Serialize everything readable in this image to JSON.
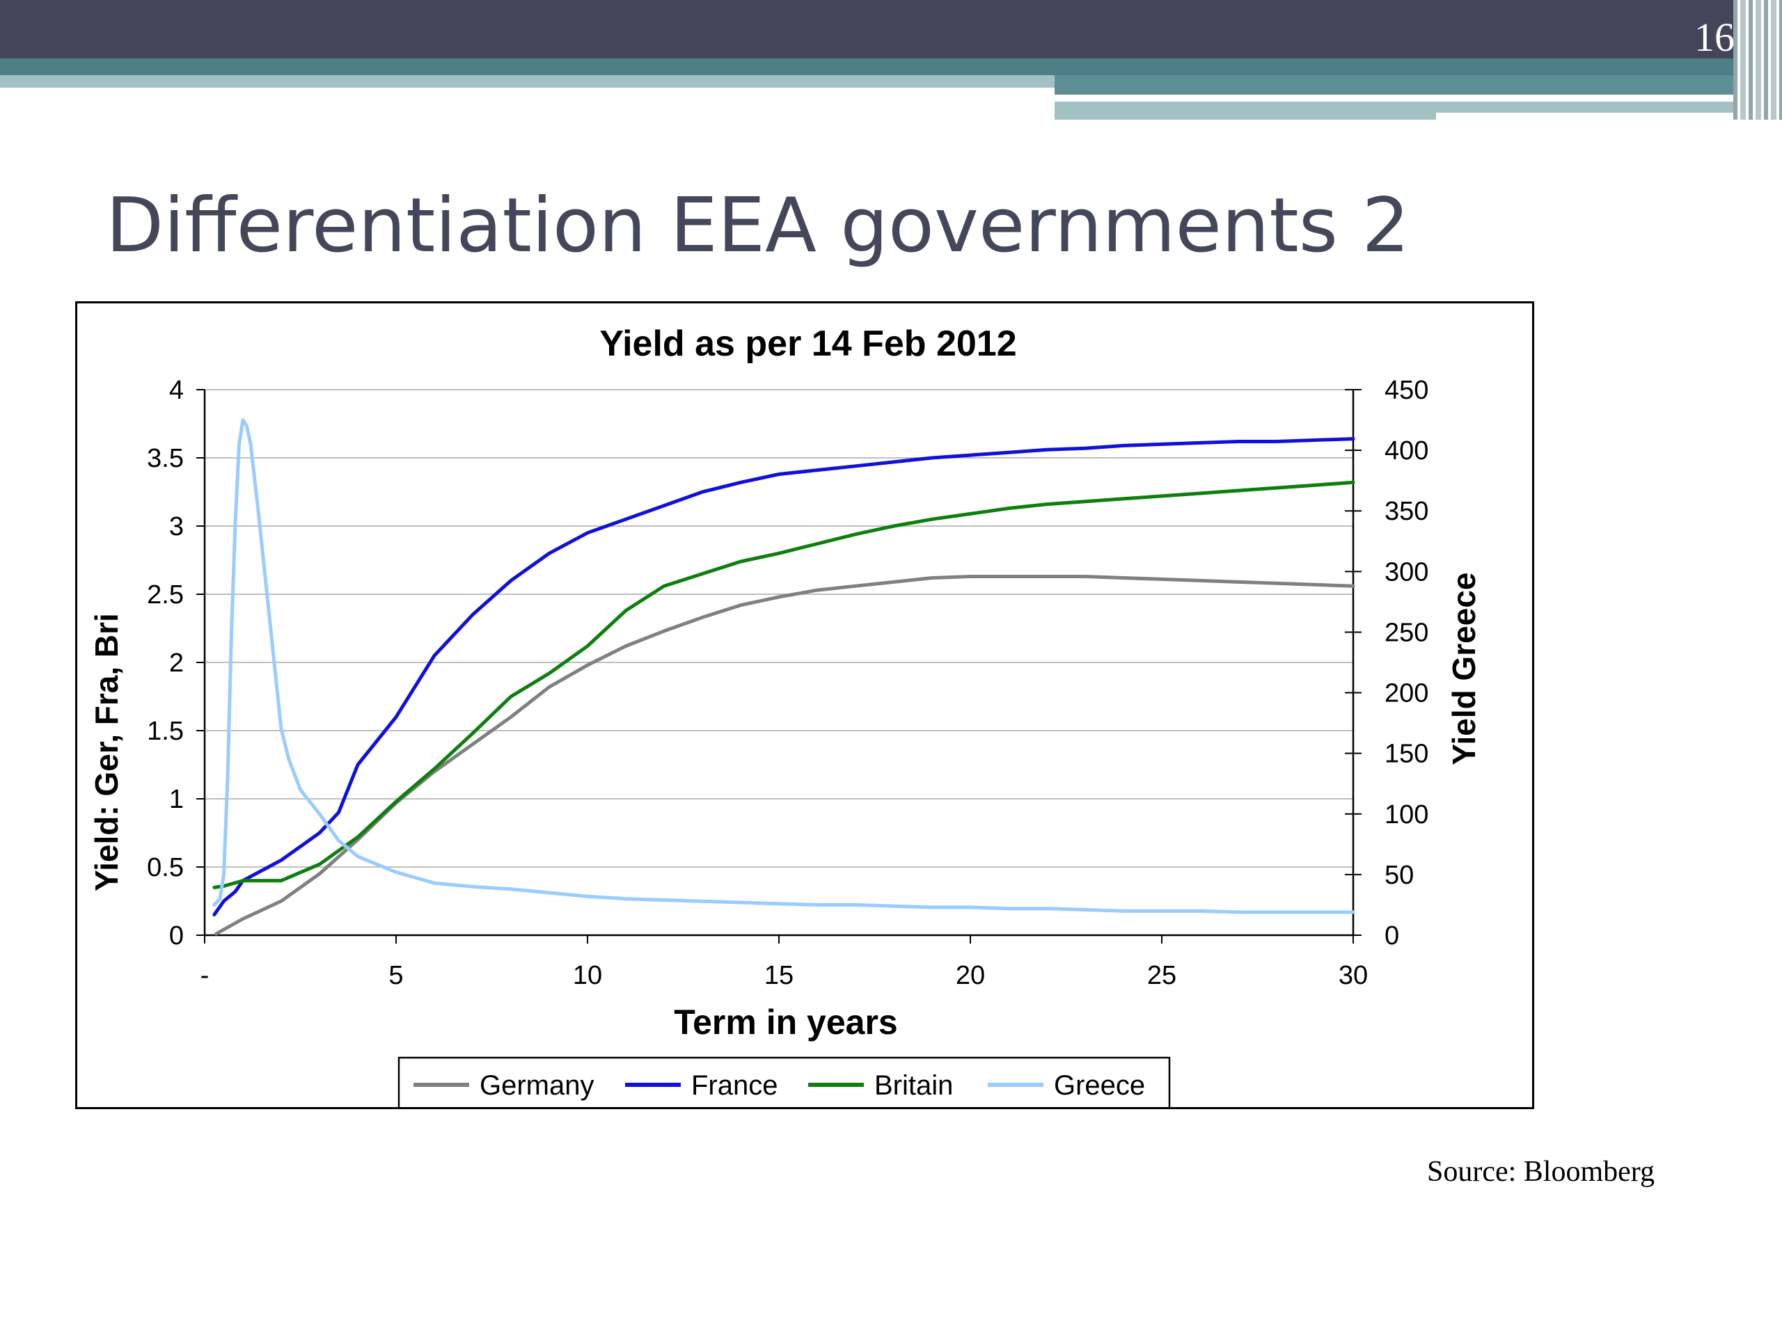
{
  "slide": {
    "page_number": "16",
    "title": "Differentiation EEA governments 2",
    "source": "Source: Bloomberg"
  },
  "chart_data": {
    "type": "line",
    "title": "Yield as per 14 Feb 2012",
    "xlabel": "Term in years",
    "ylabel_left": "Yield: Ger, Fra, Bri",
    "ylabel_right": "Yield Greece",
    "xlim": [
      0,
      30
    ],
    "ylim_left": [
      0,
      4
    ],
    "ylim_right": [
      0,
      450
    ],
    "x_ticks": [
      "-",
      "5",
      "10",
      "15",
      "20",
      "25",
      "30"
    ],
    "y_left_ticks": [
      "0",
      "0.5",
      "1",
      "1.5",
      "2",
      "2.5",
      "3",
      "3.5",
      "4"
    ],
    "y_right_ticks": [
      "0",
      "50",
      "100",
      "150",
      "200",
      "250",
      "300",
      "350",
      "400",
      "450"
    ],
    "grid": true,
    "legend_position": "bottom",
    "series": [
      {
        "name": "Germany",
        "axis": "left",
        "color": "#808080",
        "points": [
          [
            0.3,
            0.01
          ],
          [
            1,
            0.12
          ],
          [
            2,
            0.25
          ],
          [
            3,
            0.45
          ],
          [
            4,
            0.7
          ],
          [
            5,
            0.97
          ],
          [
            6,
            1.2
          ],
          [
            7,
            1.4
          ],
          [
            8,
            1.6
          ],
          [
            9,
            1.82
          ],
          [
            10,
            1.98
          ],
          [
            11,
            2.12
          ],
          [
            12,
            2.23
          ],
          [
            13,
            2.33
          ],
          [
            14,
            2.42
          ],
          [
            15,
            2.48
          ],
          [
            16,
            2.53
          ],
          [
            17,
            2.56
          ],
          [
            18,
            2.59
          ],
          [
            19,
            2.62
          ],
          [
            20,
            2.63
          ],
          [
            21,
            2.63
          ],
          [
            22,
            2.63
          ],
          [
            23,
            2.63
          ],
          [
            24,
            2.62
          ],
          [
            25,
            2.61
          ],
          [
            26,
            2.6
          ],
          [
            27,
            2.59
          ],
          [
            28,
            2.58
          ],
          [
            29,
            2.57
          ],
          [
            30,
            2.56
          ]
        ]
      },
      {
        "name": "France",
        "axis": "left",
        "color": "#1010dd",
        "points": [
          [
            0.25,
            0.15
          ],
          [
            0.5,
            0.25
          ],
          [
            0.8,
            0.32
          ],
          [
            1,
            0.4
          ],
          [
            2,
            0.55
          ],
          [
            3,
            0.75
          ],
          [
            3.5,
            0.9
          ],
          [
            4,
            1.25
          ],
          [
            5,
            1.6
          ],
          [
            6,
            2.05
          ],
          [
            7,
            2.35
          ],
          [
            8,
            2.6
          ],
          [
            9,
            2.8
          ],
          [
            10,
            2.95
          ],
          [
            11,
            3.05
          ],
          [
            12,
            3.15
          ],
          [
            13,
            3.25
          ],
          [
            14,
            3.32
          ],
          [
            15,
            3.38
          ],
          [
            16,
            3.41
          ],
          [
            17,
            3.44
          ],
          [
            18,
            3.47
          ],
          [
            19,
            3.5
          ],
          [
            20,
            3.52
          ],
          [
            21,
            3.54
          ],
          [
            22,
            3.56
          ],
          [
            23,
            3.57
          ],
          [
            24,
            3.59
          ],
          [
            25,
            3.6
          ],
          [
            26,
            3.61
          ],
          [
            27,
            3.62
          ],
          [
            28,
            3.62
          ],
          [
            29,
            3.63
          ],
          [
            30,
            3.64
          ]
        ]
      },
      {
        "name": "Britain",
        "axis": "left",
        "color": "#0d7f0d",
        "points": [
          [
            0.25,
            0.35
          ],
          [
            0.5,
            0.36
          ],
          [
            1,
            0.4
          ],
          [
            2,
            0.4
          ],
          [
            3,
            0.52
          ],
          [
            4,
            0.72
          ],
          [
            5,
            0.98
          ],
          [
            6,
            1.22
          ],
          [
            7,
            1.48
          ],
          [
            8,
            1.75
          ],
          [
            9,
            1.92
          ],
          [
            10,
            2.12
          ],
          [
            11,
            2.38
          ],
          [
            12,
            2.56
          ],
          [
            13,
            2.65
          ],
          [
            14,
            2.74
          ],
          [
            15,
            2.8
          ],
          [
            16,
            2.87
          ],
          [
            17,
            2.94
          ],
          [
            18,
            3.0
          ],
          [
            19,
            3.05
          ],
          [
            20,
            3.09
          ],
          [
            21,
            3.13
          ],
          [
            22,
            3.16
          ],
          [
            23,
            3.18
          ],
          [
            24,
            3.2
          ],
          [
            25,
            3.22
          ],
          [
            26,
            3.24
          ],
          [
            27,
            3.26
          ],
          [
            28,
            3.28
          ],
          [
            29,
            3.3
          ],
          [
            30,
            3.32
          ]
        ]
      },
      {
        "name": "Greece",
        "axis": "right",
        "color": "#99ccff",
        "points": [
          [
            0.25,
            25
          ],
          [
            0.4,
            30
          ],
          [
            0.5,
            50
          ],
          [
            0.6,
            130
          ],
          [
            0.7,
            250
          ],
          [
            0.8,
            340
          ],
          [
            0.9,
            405
          ],
          [
            1.0,
            425
          ],
          [
            1.1,
            420
          ],
          [
            1.2,
            405
          ],
          [
            1.4,
            350
          ],
          [
            1.6,
            290
          ],
          [
            1.8,
            230
          ],
          [
            2.0,
            170
          ],
          [
            2.2,
            145
          ],
          [
            2.5,
            120
          ],
          [
            3,
            100
          ],
          [
            3.5,
            78
          ],
          [
            4,
            65
          ],
          [
            5,
            52
          ],
          [
            6,
            43
          ],
          [
            7,
            40
          ],
          [
            8,
            38
          ],
          [
            9,
            35
          ],
          [
            10,
            32
          ],
          [
            11,
            30
          ],
          [
            12,
            29
          ],
          [
            13,
            28
          ],
          [
            14,
            27
          ],
          [
            15,
            26
          ],
          [
            16,
            25
          ],
          [
            17,
            25
          ],
          [
            18,
            24
          ],
          [
            19,
            23
          ],
          [
            20,
            23
          ],
          [
            21,
            22
          ],
          [
            22,
            22
          ],
          [
            23,
            21
          ],
          [
            24,
            20
          ],
          [
            25,
            20
          ],
          [
            26,
            20
          ],
          [
            27,
            19
          ],
          [
            28,
            19
          ],
          [
            29,
            19
          ],
          [
            30,
            19
          ]
        ]
      }
    ]
  }
}
